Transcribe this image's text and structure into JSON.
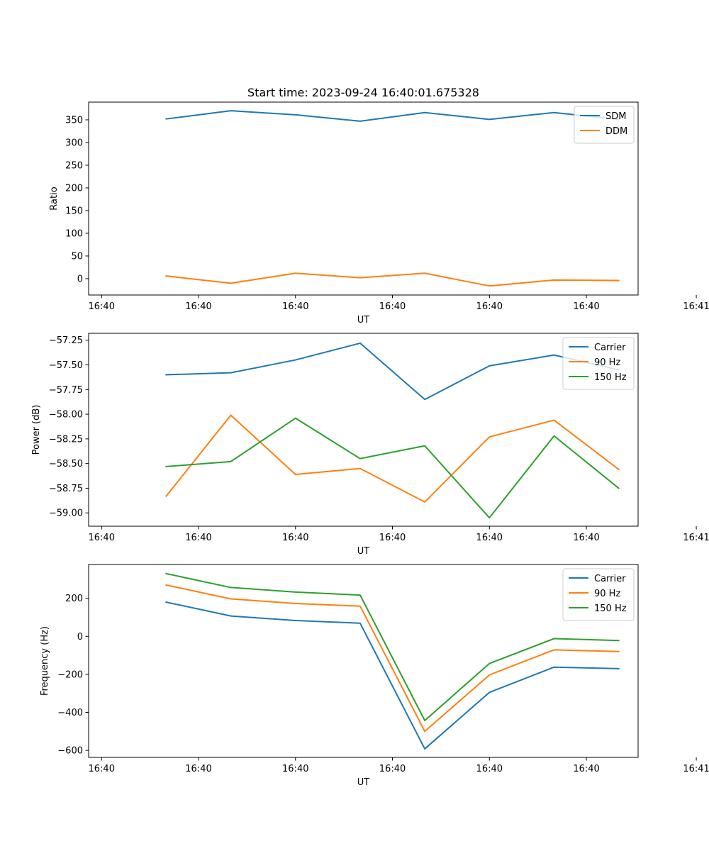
{
  "figure_title": "Start time: 2023-09-24 16:40:01.675328",
  "chart_data": [
    {
      "type": "line",
      "title": "Start time: 2023-09-24 16:40:01.675328",
      "xlabel": "UT",
      "ylabel": "Ratio",
      "xlim": [
        -0.2,
        8.3
      ],
      "ylim": [
        -36,
        389
      ],
      "x": [
        1,
        2,
        3,
        4,
        5,
        6,
        7,
        8
      ],
      "xticks": [
        0,
        1.5,
        3,
        4.5,
        6,
        7.5,
        9.2
      ],
      "xtick_labels": [
        "16:40",
        "16:40",
        "16:40",
        "16:40",
        "16:40",
        "16:40",
        "16:41"
      ],
      "yticks": [
        0,
        50,
        100,
        150,
        200,
        250,
        300,
        350
      ],
      "ytick_labels": [
        "0",
        "50",
        "100",
        "150",
        "200",
        "250",
        "300",
        "350"
      ],
      "legend_position": "top-right",
      "series": [
        {
          "name": "SDM",
          "color": "#1f77b4",
          "values": [
            352,
            370,
            361,
            347,
            366,
            351,
            366,
            351
          ]
        },
        {
          "name": "DDM",
          "color": "#ff7f0e",
          "values": [
            6,
            -10,
            12,
            2,
            12,
            -16,
            -3,
            -4
          ]
        }
      ]
    },
    {
      "type": "line",
      "title": "",
      "xlabel": "UT",
      "ylabel": "Power (dB)",
      "xlim": [
        -0.2,
        8.3
      ],
      "ylim": [
        -59.135,
        -57.18
      ],
      "x": [
        1,
        2,
        3,
        4,
        5,
        6,
        7,
        8
      ],
      "xticks": [
        0,
        1.5,
        3,
        4.5,
        6,
        7.5,
        9.2
      ],
      "xtick_labels": [
        "16:40",
        "16:40",
        "16:40",
        "16:40",
        "16:40",
        "16:40",
        "16:41"
      ],
      "yticks": [
        -59.0,
        -58.75,
        -58.5,
        -58.25,
        -58.0,
        -57.75,
        -57.5,
        -57.25
      ],
      "ytick_labels": [
        "−59.00",
        "−58.75",
        "−58.50",
        "−58.25",
        "−58.00",
        "−57.75",
        "−57.50",
        "−57.25"
      ],
      "legend_position": "top-right",
      "series": [
        {
          "name": "Carrier",
          "color": "#1f77b4",
          "values": [
            -57.6,
            -57.58,
            -57.45,
            -57.28,
            -57.85,
            -57.51,
            -57.4,
            -57.55
          ]
        },
        {
          "name": "90 Hz",
          "color": "#ff7f0e",
          "values": [
            -58.83,
            -58.01,
            -58.61,
            -58.55,
            -58.89,
            -58.23,
            -58.06,
            -58.56
          ]
        },
        {
          "name": "150 Hz",
          "color": "#2ca02c",
          "values": [
            -58.53,
            -58.48,
            -58.04,
            -58.45,
            -58.32,
            -59.05,
            -58.22,
            -58.75
          ]
        }
      ]
    },
    {
      "type": "line",
      "title": "",
      "xlabel": "UT",
      "ylabel": "Frequency (Hz)",
      "xlim": [
        -0.2,
        8.3
      ],
      "ylim": [
        -637,
        378
      ],
      "x": [
        1,
        2,
        3,
        4,
        5,
        6,
        7,
        8
      ],
      "xticks": [
        0,
        1.5,
        3,
        4.5,
        6,
        7.5,
        9.2
      ],
      "xtick_labels": [
        "16:40",
        "16:40",
        "16:40",
        "16:40",
        "16:40",
        "16:40",
        "16:41"
      ],
      "yticks": [
        -600,
        -400,
        -200,
        0,
        200
      ],
      "ytick_labels": [
        "−600",
        "−400",
        "−200",
        "0",
        "200"
      ],
      "legend_position": "top-right",
      "series": [
        {
          "name": "Carrier",
          "color": "#1f77b4",
          "values": [
            180,
            107,
            83,
            69,
            -592,
            -295,
            -162,
            -170
          ]
        },
        {
          "name": "90 Hz",
          "color": "#ff7f0e",
          "values": [
            270,
            197,
            173,
            159,
            -500,
            -203,
            -71,
            -80
          ]
        },
        {
          "name": "150 Hz",
          "color": "#2ca02c",
          "values": [
            330,
            257,
            233,
            217,
            -443,
            -143,
            -12,
            -22
          ]
        }
      ]
    }
  ]
}
